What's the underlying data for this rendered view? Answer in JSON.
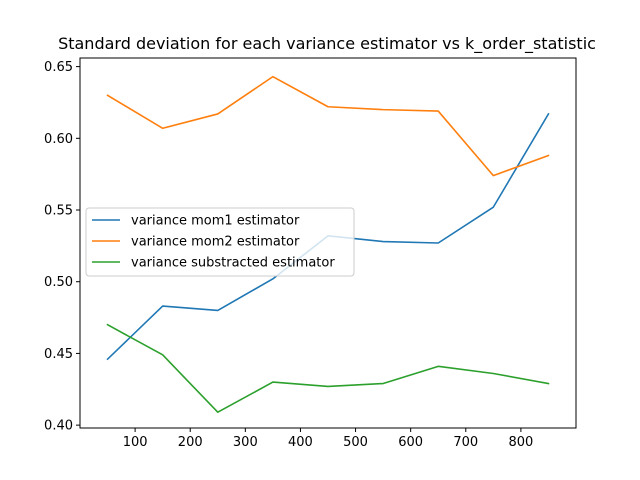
{
  "chart_data": {
    "type": "line",
    "title": "Standard deviation for each variance estimator vs k_order_statistic",
    "xlabel": "",
    "ylabel": "",
    "x": [
      50,
      150,
      250,
      350,
      450,
      550,
      650,
      750,
      850
    ],
    "xlim": [
      0,
      900
    ],
    "ylim": [
      0.398,
      0.656
    ],
    "xticks": [
      100,
      200,
      300,
      400,
      500,
      600,
      700,
      800
    ],
    "xtick_labels": [
      "100",
      "200",
      "300",
      "400",
      "500",
      "600",
      "700",
      "800"
    ],
    "yticks": [
      0.4,
      0.45,
      0.5,
      0.55,
      0.6,
      0.65
    ],
    "ytick_labels": [
      "0.40",
      "0.45",
      "0.50",
      "0.55",
      "0.60",
      "0.65"
    ],
    "grid": false,
    "legend_position": "center-left",
    "series": [
      {
        "name": "variance mom1 estimator",
        "color": "#1f77b4",
        "values": [
          0.446,
          0.483,
          0.48,
          0.502,
          0.532,
          0.528,
          0.527,
          0.552,
          0.617
        ]
      },
      {
        "name": "variance mom2 estimator",
        "color": "#ff7f0e",
        "values": [
          0.63,
          0.607,
          0.617,
          0.643,
          0.622,
          0.62,
          0.619,
          0.574,
          0.588
        ]
      },
      {
        "name": "variance substracted estimator",
        "color": "#2ca02c",
        "values": [
          0.47,
          0.449,
          0.409,
          0.43,
          0.427,
          0.429,
          0.441,
          0.436,
          0.429
        ]
      }
    ]
  }
}
